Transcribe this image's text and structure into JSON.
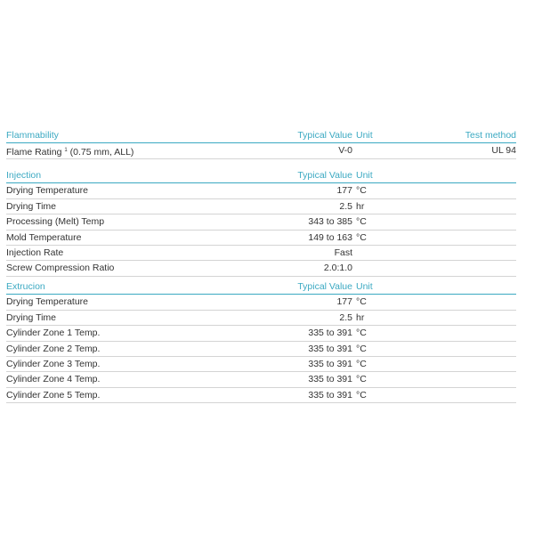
{
  "flammability": {
    "header": {
      "title": "Flammability",
      "value": "Typical Value",
      "unit": "Unit",
      "test_method": "Test method"
    },
    "rows": [
      {
        "property": "Flame Rating",
        "footnote": "1",
        "note": "(0.75 mm, ALL)",
        "value": "V-0",
        "unit": "",
        "test_method": "UL 94"
      }
    ]
  },
  "injection": {
    "header": {
      "title": "Injection",
      "value": "Typical Value",
      "unit": "Unit"
    },
    "rows": [
      {
        "property": "Drying Temperature",
        "value": "177",
        "unit": "°C"
      },
      {
        "property": "Drying Time",
        "value": "2.5",
        "unit": "hr"
      },
      {
        "property": "Processing (Melt) Temp",
        "value": "343 to 385",
        "unit": "°C"
      },
      {
        "property": "Mold Temperature",
        "value": "149 to 163",
        "unit": "°C"
      },
      {
        "property": "Injection Rate",
        "value": "Fast",
        "unit": ""
      },
      {
        "property": "Screw Compression Ratio",
        "value": "2.0:1.0",
        "unit": ""
      }
    ]
  },
  "extrusion": {
    "header": {
      "title": "Extrucion",
      "value": "Typical Value",
      "unit": "Unit"
    },
    "rows": [
      {
        "property": "Drying Temperature",
        "value": "177",
        "unit": "°C"
      },
      {
        "property": "Drying Time",
        "value": "2.5",
        "unit": "hr"
      },
      {
        "property": "Cylinder Zone 1 Temp.",
        "value": "335 to 391",
        "unit": "°C"
      },
      {
        "property": "Cylinder Zone 2 Temp.",
        "value": "335 to 391",
        "unit": "°C"
      },
      {
        "property": "Cylinder Zone 3 Temp.",
        "value": "335 to 391",
        "unit": "°C"
      },
      {
        "property": "Cylinder Zone 4 Temp.",
        "value": "335 to 391",
        "unit": "°C"
      },
      {
        "property": "Cylinder Zone 5 Temp.",
        "value": "335 to 391",
        "unit": "°C"
      }
    ]
  },
  "colors": {
    "accent": "#3ba9c2",
    "rule": "#d4d4d4"
  }
}
